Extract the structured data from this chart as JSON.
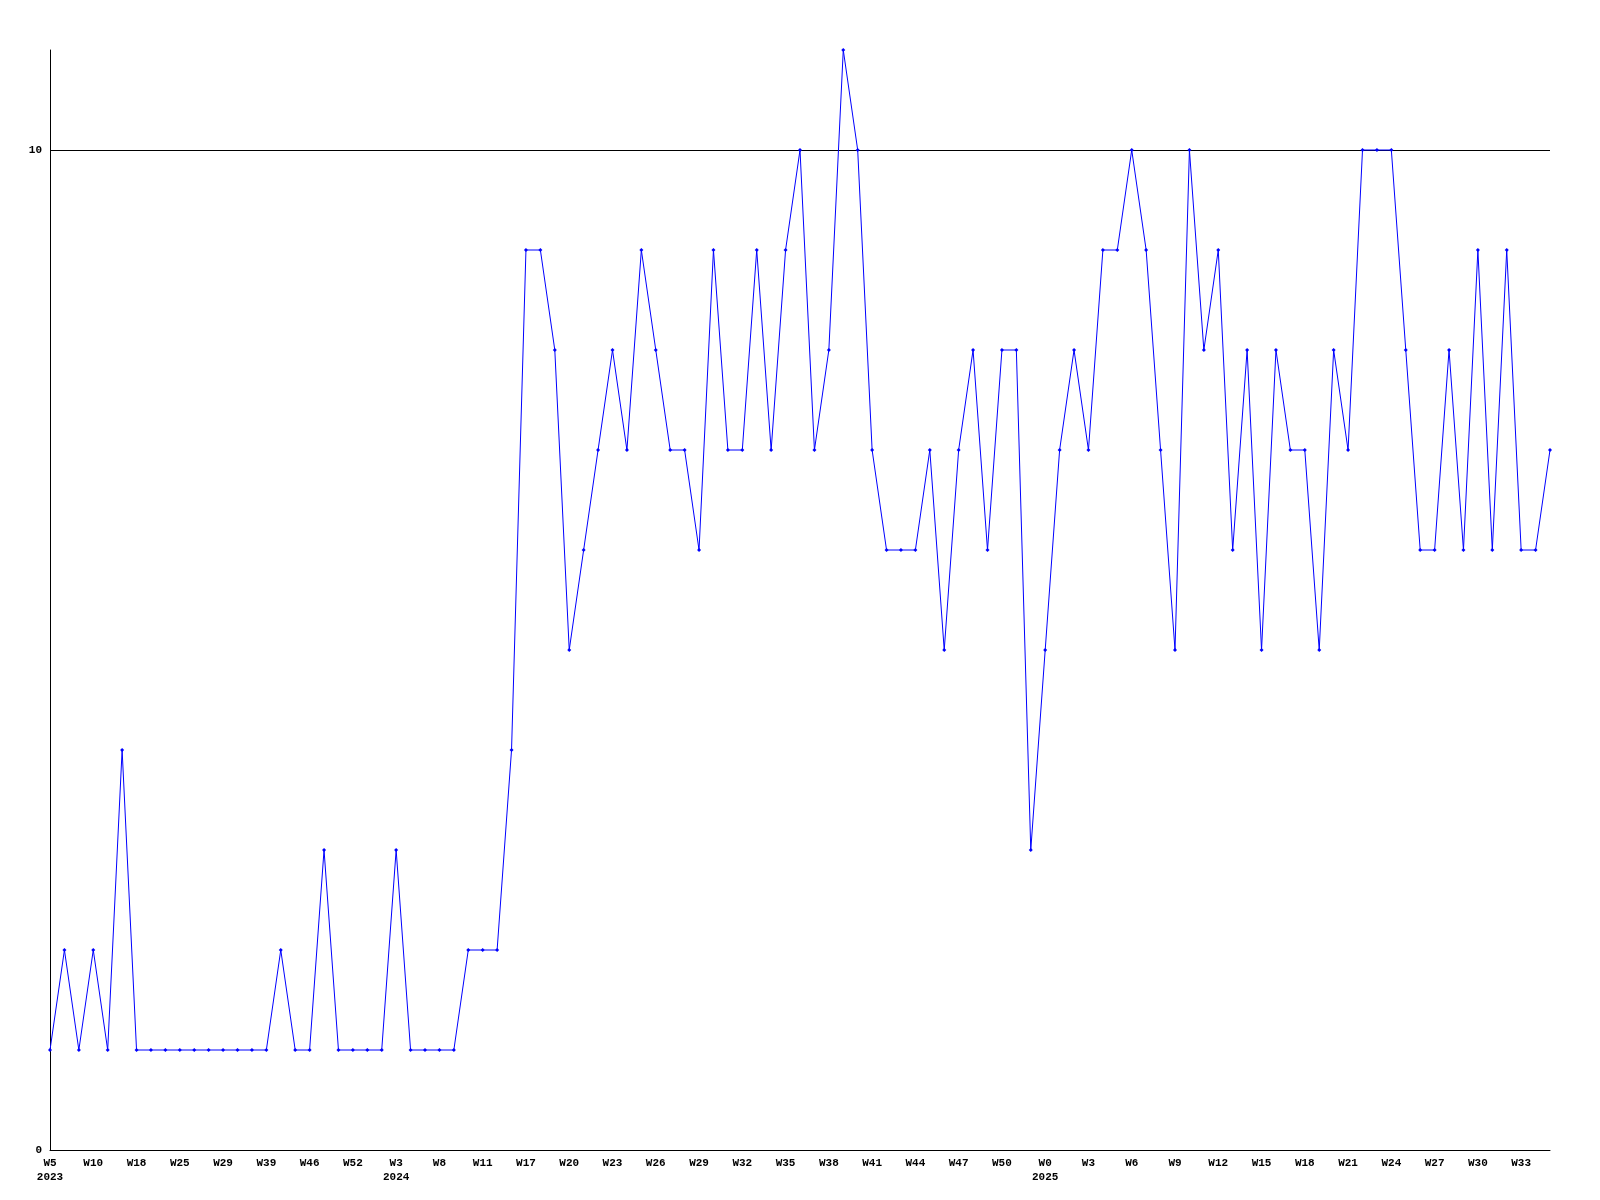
{
  "chart_data": {
    "type": "line",
    "categories": [
      "W5\n2023",
      null,
      null,
      "W10",
      null,
      null,
      "W18",
      null,
      null,
      "W25",
      null,
      null,
      "W29",
      null,
      null,
      "W39",
      null,
      null,
      "W46",
      null,
      null,
      "W52",
      null,
      null,
      "W3\n2024",
      null,
      null,
      "W8",
      null,
      null,
      "W11",
      null,
      null,
      "W17",
      null,
      null,
      "W20",
      null,
      null,
      "W23",
      null,
      null,
      "W26",
      null,
      null,
      "W29",
      null,
      null,
      "W32",
      null,
      null,
      "W35",
      null,
      null,
      "W38",
      null,
      null,
      "W41",
      null,
      null,
      "W44",
      null,
      null,
      "W47",
      null,
      null,
      "W50",
      null,
      null,
      "W0\n2025",
      null,
      null,
      "W3",
      null,
      null,
      "W6",
      null,
      null,
      "W9",
      null,
      null,
      "W12",
      null,
      null,
      "W15",
      null,
      null,
      "W18",
      null,
      null,
      "W21",
      null,
      null,
      "W24",
      null,
      null,
      "W27",
      null,
      null,
      "W30",
      null,
      null,
      "W33",
      null,
      null
    ],
    "series": [
      {
        "color": "#0000ff",
        "values": [
          1,
          2,
          1,
          2,
          1,
          4,
          1,
          1,
          1,
          1,
          1,
          1,
          1,
          1,
          1,
          1,
          2,
          1,
          1,
          3,
          1,
          1,
          1,
          1,
          3,
          1,
          1,
          1,
          1,
          2,
          2,
          2,
          4,
          9,
          9,
          8,
          5,
          6,
          7,
          8,
          7,
          9,
          8,
          7,
          7,
          6,
          9,
          7,
          7,
          9,
          7,
          9,
          10,
          7,
          8,
          11,
          10,
          7,
          6,
          6,
          6,
          7,
          5,
          7,
          8,
          6,
          8,
          8,
          3,
          5,
          7,
          8,
          7,
          9,
          9,
          10,
          9,
          7,
          5,
          10,
          8,
          9,
          6,
          8,
          5,
          8,
          7,
          7,
          5,
          8,
          7,
          10,
          10,
          10,
          8,
          6,
          6,
          8,
          6,
          9,
          6,
          9,
          6,
          6,
          7
        ]
      }
    ],
    "ylim": [
      0,
      11
    ],
    "yticks": [
      0,
      10
    ],
    "grid": "y",
    "marker": "diamond",
    "line_style": "solid"
  }
}
